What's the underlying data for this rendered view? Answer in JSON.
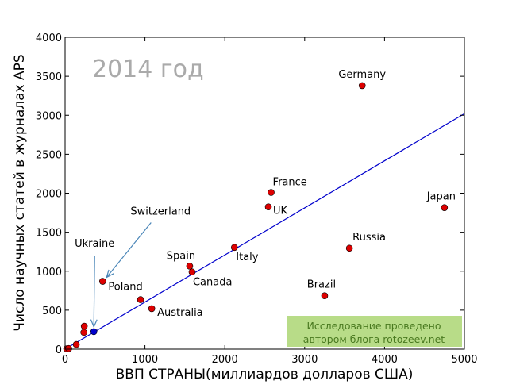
{
  "chart_data": {
    "type": "scatter",
    "title": "2014 год",
    "xlabel": "ВВП СТРАНЫ(миллиардов долларов США)",
    "ylabel": "Число научных статей в журналах APS",
    "xlim": [
      0,
      5000
    ],
    "ylim": [
      0,
      4000
    ],
    "xticks": [
      "0",
      "1000",
      "2000",
      "3000",
      "4000",
      "5000"
    ],
    "yticks": [
      "0",
      "500",
      "1000",
      "1500",
      "2000",
      "2500",
      "3000",
      "3500",
      "4000"
    ],
    "grid": false,
    "point_color": "#dd0000",
    "highlight_color": "#0000cc",
    "fit_line_color": "#0000cc",
    "fit_line": {
      "x": [
        0,
        5000
      ],
      "y": [
        0,
        3020
      ]
    },
    "points": [
      {
        "label": "Germany",
        "x": 3720,
        "y": 3380
      },
      {
        "label": "France",
        "x": 2580,
        "y": 2010
      },
      {
        "label": "UK",
        "x": 2545,
        "y": 1825
      },
      {
        "label": "Japan",
        "x": 4750,
        "y": 1815
      },
      {
        "label": "Russia",
        "x": 3560,
        "y": 1295
      },
      {
        "label": "Brazil",
        "x": 3250,
        "y": 685
      },
      {
        "label": "Italy",
        "x": 2120,
        "y": 1305
      },
      {
        "label": "Spain",
        "x": 1560,
        "y": 1065
      },
      {
        "label": "Canada",
        "x": 1590,
        "y": 990
      },
      {
        "label": "Poland",
        "x": 945,
        "y": 635
      },
      {
        "label": "Australia",
        "x": 1085,
        "y": 520
      },
      {
        "label": "Switzerland",
        "x": 470,
        "y": 870
      },
      {
        "label": "Ukraine",
        "x": 360,
        "y": 225,
        "highlight": true
      },
      {
        "label": "",
        "x": 240,
        "y": 295
      },
      {
        "label": "",
        "x": 235,
        "y": 215
      },
      {
        "label": "",
        "x": 140,
        "y": 60
      },
      {
        "label": "",
        "x": 20,
        "y": 5
      },
      {
        "label": "",
        "x": 45,
        "y": 8
      }
    ],
    "annotation": {
      "lines": [
        "Исследование проведено",
        "автором блога rotozeev.net"
      ],
      "background": "#b8dc88",
      "text_color": "#4a7a20"
    }
  }
}
